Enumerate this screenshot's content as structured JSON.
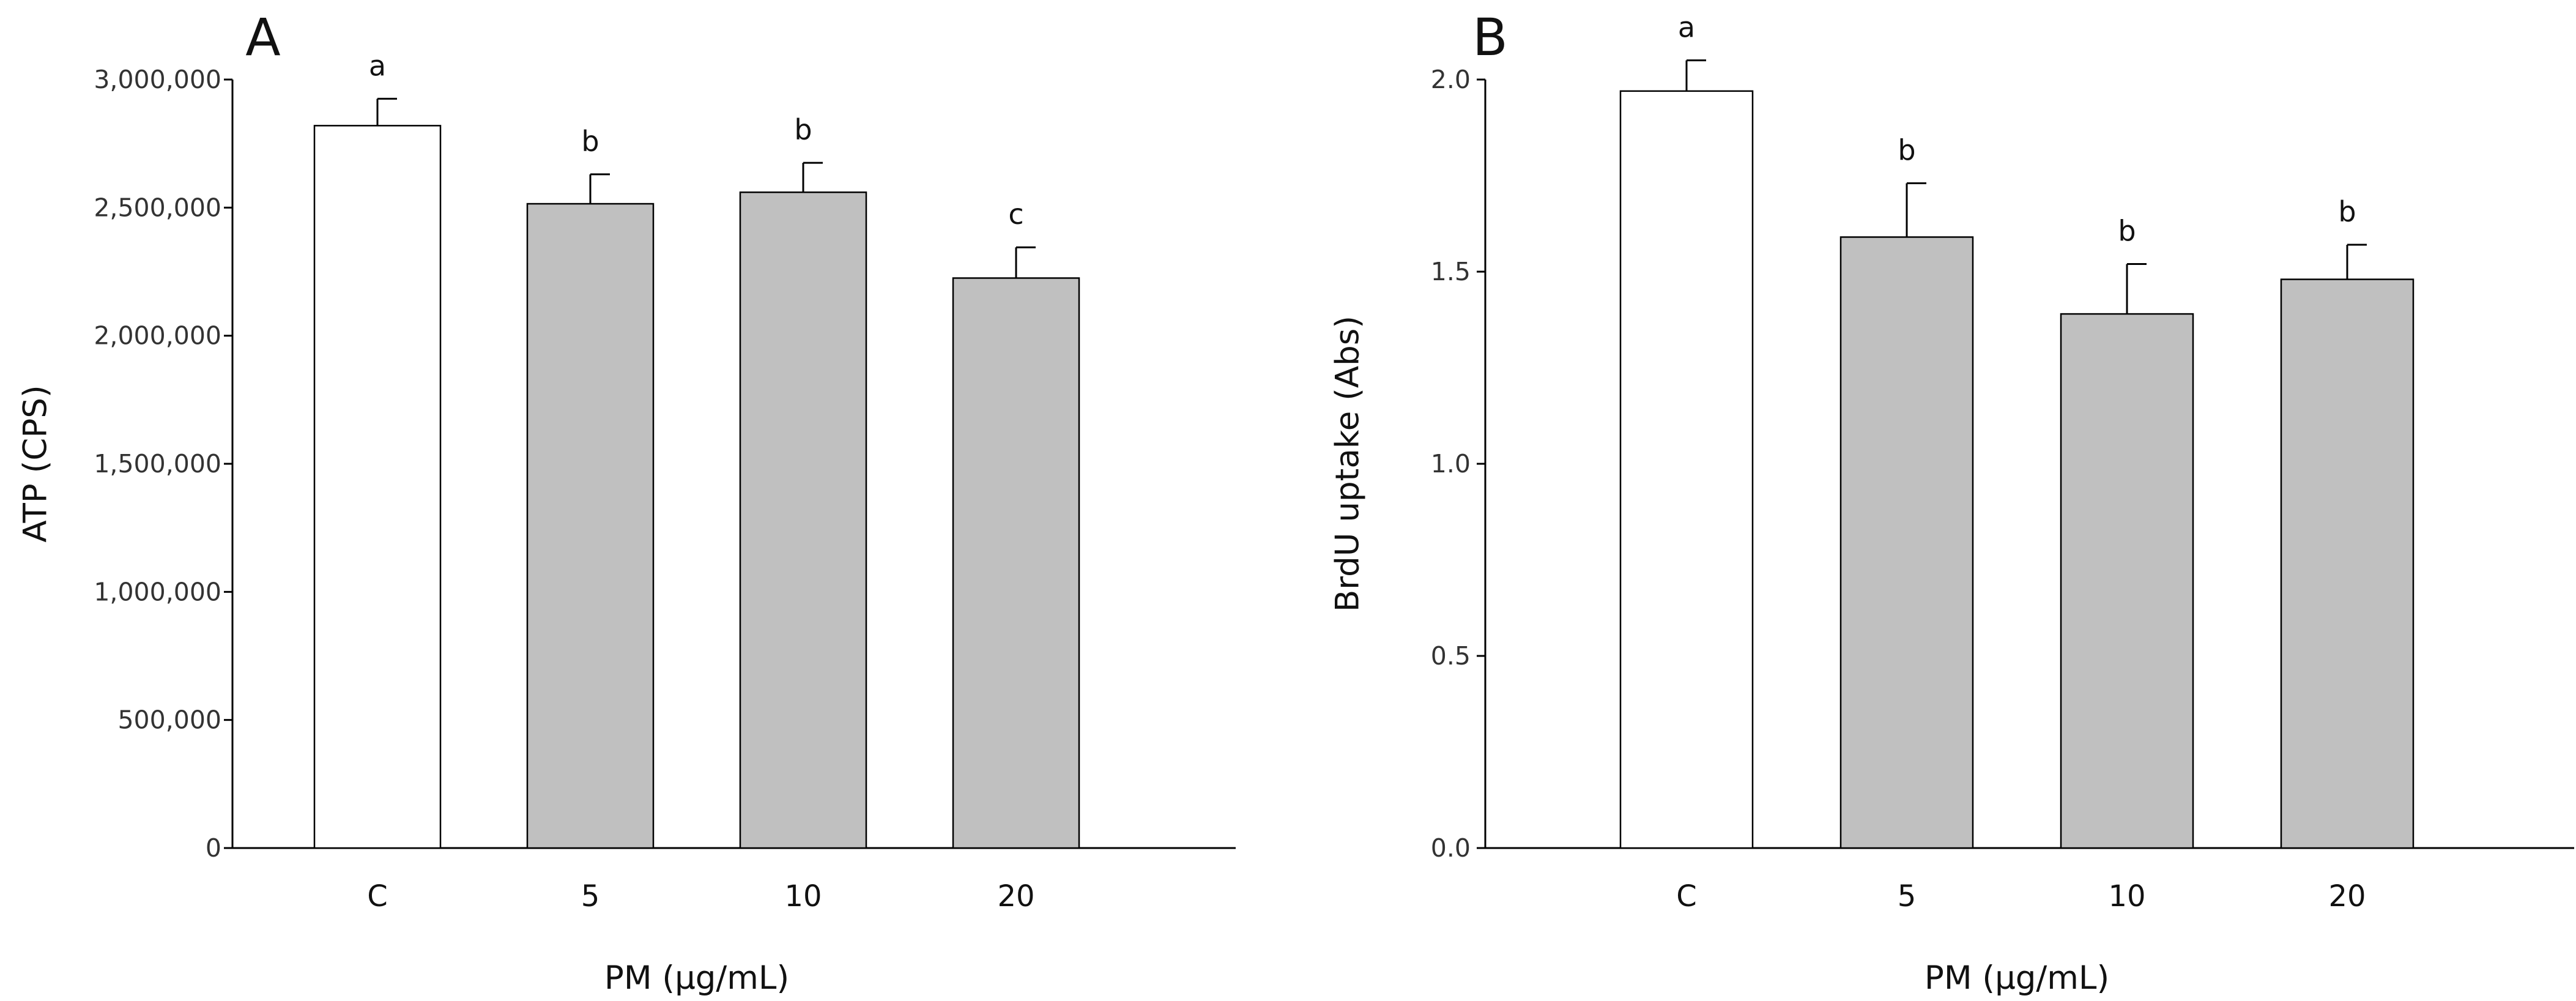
{
  "colors": {
    "control_bar": "#ffffff",
    "treatment_bar": "#c0c0c0",
    "bar_edge": "#000000",
    "axis": "#000000"
  },
  "chart_data": [
    {
      "type": "bar",
      "panel": "A",
      "categories": [
        "C",
        "5",
        "10",
        "20"
      ],
      "values": [
        2820000,
        2515000,
        2560000,
        2225000
      ],
      "errors": [
        105000,
        115000,
        115000,
        120000
      ],
      "significance": [
        "a",
        "b",
        "b",
        "c"
      ],
      "xlabel": "PM (µg/mL)",
      "ylabel": "ATP (CPS)",
      "ylim": [
        0,
        3000000
      ],
      "yticks": [
        0,
        500000,
        1000000,
        1500000,
        2000000,
        2500000,
        3000000
      ],
      "ytick_labels": [
        "0",
        "500,000",
        "1,000,000",
        "1,500,000",
        "2,000,000",
        "2,500,000",
        "3,000,000"
      ],
      "grid": false
    },
    {
      "type": "bar",
      "panel": "B",
      "categories": [
        "C",
        "5",
        "10",
        "20"
      ],
      "values": [
        1.97,
        1.59,
        1.39,
        1.48
      ],
      "errors": [
        0.08,
        0.14,
        0.13,
        0.09
      ],
      "significance": [
        "a",
        "b",
        "b",
        "b"
      ],
      "xlabel": "PM (µg/mL)",
      "ylabel": "BrdU uptake (Abs)",
      "ylim": [
        0,
        2.0
      ],
      "yticks": [
        0,
        0.5,
        1.0,
        1.5,
        2.0
      ],
      "ytick_labels": [
        "0.0",
        "0.5",
        "1.0",
        "1.5",
        "2.0"
      ],
      "grid": false
    }
  ]
}
